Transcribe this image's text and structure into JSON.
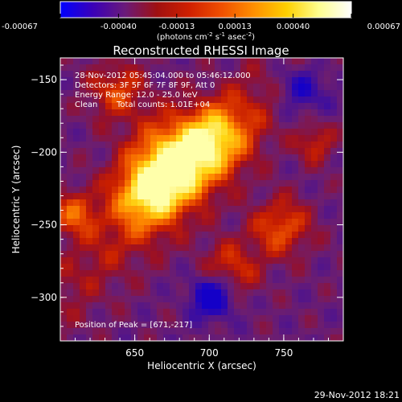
{
  "chart_data": {
    "type": "heatmap",
    "title": "Reconstructed RHESSI Image",
    "colorbar": {
      "ticks": [
        "-0.00067",
        "-0.00040",
        "-0.00013",
        "0.00013",
        "0.00040",
        "0.00067"
      ],
      "unit_prefix": "(photons cm",
      "unit_exp1": "-2",
      "unit_mid": " s",
      "unit_exp2": "-1",
      "unit_mid2": " asec",
      "unit_exp3": "-2",
      "unit_suffix": ")",
      "colors": [
        "#0000ff",
        "#3a00b8",
        "#6a1a7a",
        "#a01010",
        "#d02000",
        "#f05000",
        "#ff9000",
        "#ffd000",
        "#ffff90",
        "#ffffff"
      ]
    },
    "xlabel": "Heliocentric X (arcsec)",
    "ylabel": "Heliocentric Y (arcsec)",
    "xlim": [
      600,
      790
    ],
    "ylim": [
      -330,
      -135
    ],
    "x_ticks": [
      650,
      700,
      750
    ],
    "y_ticks": [
      -150,
      -200,
      -250,
      -300
    ],
    "annotations": {
      "time": "28-Nov-2012 05:45:04.000 to 05:46:12.000",
      "detectors": "Detectors: 3F 5F 6F 7F 8F 9F, Att 0",
      "energy": "Energy Range: 12.0 - 25.0 keV",
      "clean": "Clean",
      "counts": "Total counts: 1.01E+04",
      "peak": "Position of Peak = [671,-217]"
    },
    "peak_position": [
      671,
      -217
    ],
    "grid": false
  },
  "footer": {
    "timestamp": "29-Nov-2012 18:21"
  }
}
